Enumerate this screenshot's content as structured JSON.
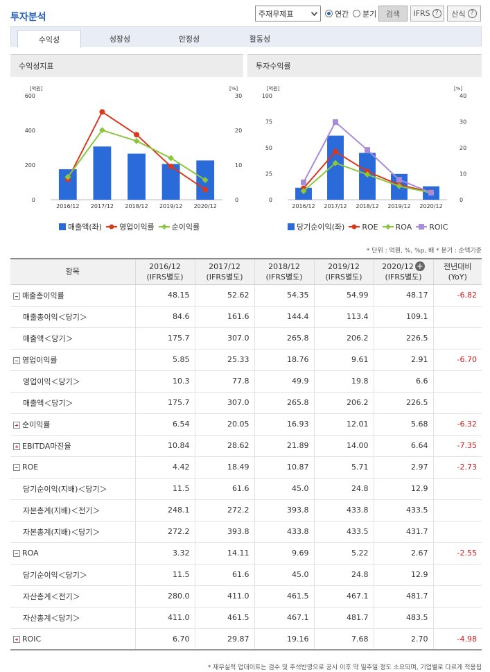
{
  "header": {
    "title": "투자분석",
    "select_value": "주재무제표",
    "radio_annual": "연간",
    "radio_quarter": "분기",
    "search_btn": "검색",
    "ifrs_btn": "IFRS",
    "formula_btn": "산식",
    "help_glyph": "?"
  },
  "tabs": [
    "수익성",
    "성장성",
    "안정성",
    "활동성"
  ],
  "panels": {
    "left_title": "수익성지표",
    "right_title": "투자수익률"
  },
  "colors": {
    "bar": "#2a6ad9",
    "red": "#d73a1f",
    "green": "#8cc63f",
    "purple": "#a98bd9",
    "yoy": "#d21d1d"
  },
  "chart_data": [
    {
      "type": "bar",
      "title": "수익성지표",
      "categories": [
        "2016/12",
        "2017/12",
        "2018/12",
        "2019/12",
        "2020/12"
      ],
      "left_axis_label": "[억원]",
      "right_axis_label": "[%]",
      "left_ticks": [
        "600",
        "400",
        "200",
        "0"
      ],
      "right_ticks": [
        "30",
        "20",
        "10",
        "0"
      ],
      "ylim_left": [
        0,
        600
      ],
      "ylim_right": [
        0,
        30
      ],
      "series": [
        {
          "name": "매출액(좌)",
          "kind": "bar",
          "axis": "left",
          "values": [
            175.7,
            307.0,
            265.8,
            206.2,
            226.5
          ]
        },
        {
          "name": "영업이익률",
          "kind": "line",
          "axis": "right",
          "marker": "circle",
          "values": [
            5.85,
            25.33,
            18.76,
            9.61,
            2.91
          ]
        },
        {
          "name": "순이익률",
          "kind": "line",
          "axis": "right",
          "marker": "diamond",
          "values": [
            6.54,
            20.05,
            16.93,
            12.01,
            5.68
          ]
        }
      ]
    },
    {
      "type": "bar",
      "title": "투자수익률",
      "categories": [
        "2016/12",
        "2017/12",
        "2018/12",
        "2019/12",
        "2020/12"
      ],
      "left_axis_label": "[억원]",
      "right_axis_label": "[%]",
      "left_ticks": [
        "100",
        "75",
        "50",
        "25",
        "0"
      ],
      "right_ticks": [
        "40",
        "30",
        "20",
        "10",
        "0"
      ],
      "ylim_left": [
        0,
        100
      ],
      "ylim_right": [
        0,
        40
      ],
      "series": [
        {
          "name": "당기순이익(좌)",
          "kind": "bar",
          "axis": "left",
          "values": [
            11.5,
            61.6,
            45.0,
            24.8,
            12.9
          ]
        },
        {
          "name": "ROE",
          "kind": "line",
          "axis": "right",
          "marker": "circle",
          "values": [
            4.42,
            18.49,
            10.87,
            5.71,
            2.97
          ]
        },
        {
          "name": "ROA",
          "kind": "line",
          "axis": "right",
          "marker": "diamond",
          "values": [
            3.32,
            14.11,
            9.69,
            5.22,
            2.67
          ]
        },
        {
          "name": "ROIC",
          "kind": "line",
          "axis": "right",
          "marker": "square",
          "values": [
            6.7,
            29.87,
            19.16,
            7.68,
            2.7
          ]
        }
      ]
    }
  ],
  "unit_note": "* 단위 : 억원, %, %p, 배   * 분기 : 순액기준",
  "table": {
    "headers": [
      {
        "main": "항목",
        "sub": ""
      },
      {
        "main": "2016/12",
        "sub": "(IFRS별도)"
      },
      {
        "main": "2017/12",
        "sub": "(IFRS별도)"
      },
      {
        "main": "2018/12",
        "sub": "(IFRS별도)"
      },
      {
        "main": "2019/12",
        "sub": "(IFRS별도)"
      },
      {
        "main": "2020/12",
        "sub": "(IFRS별도)"
      },
      {
        "main": "전년대비",
        "sub": "(YoY)"
      }
    ],
    "rows": [
      {
        "label": "매출총이익률",
        "toggle": "minus",
        "values": [
          "48.15",
          "52.62",
          "54.35",
          "54.99",
          "48.17"
        ],
        "yoy": "-6.82"
      },
      {
        "label": "매출총이익＜당기＞",
        "toggle": "",
        "values": [
          "84.6",
          "161.6",
          "144.4",
          "113.4",
          "109.1"
        ],
        "yoy": ""
      },
      {
        "label": "매출액＜당기＞",
        "toggle": "",
        "values": [
          "175.7",
          "307.0",
          "265.8",
          "206.2",
          "226.5"
        ],
        "yoy": ""
      },
      {
        "label": "영업이익률",
        "toggle": "minus",
        "values": [
          "5.85",
          "25.33",
          "18.76",
          "9.61",
          "2.91"
        ],
        "yoy": "-6.70"
      },
      {
        "label": "영업이익＜당기＞",
        "toggle": "",
        "values": [
          "10.3",
          "77.8",
          "49.9",
          "19.8",
          "6.6"
        ],
        "yoy": ""
      },
      {
        "label": "매출액＜당기＞",
        "toggle": "",
        "values": [
          "175.7",
          "307.0",
          "265.8",
          "206.2",
          "226.5"
        ],
        "yoy": ""
      },
      {
        "label": "순이익률",
        "toggle": "plus",
        "values": [
          "6.54",
          "20.05",
          "16.93",
          "12.01",
          "5.68"
        ],
        "yoy": "-6.32"
      },
      {
        "label": "EBITDA마진율",
        "toggle": "plus",
        "values": [
          "10.84",
          "28.62",
          "21.89",
          "14.00",
          "6.64"
        ],
        "yoy": "-7.35"
      },
      {
        "label": "ROE",
        "toggle": "minus",
        "values": [
          "4.42",
          "18.49",
          "10.87",
          "5.71",
          "2.97"
        ],
        "yoy": "-2.73"
      },
      {
        "label": "당기순이익(지배)＜당기＞",
        "toggle": "",
        "values": [
          "11.5",
          "61.6",
          "45.0",
          "24.8",
          "12.9"
        ],
        "yoy": ""
      },
      {
        "label": "자본총계(지배)＜전기＞",
        "toggle": "",
        "values": [
          "248.1",
          "272.2",
          "393.8",
          "433.8",
          "433.5"
        ],
        "yoy": ""
      },
      {
        "label": "자본총계(지배)＜당기＞",
        "toggle": "",
        "values": [
          "272.2",
          "393.8",
          "433.8",
          "433.5",
          "431.7"
        ],
        "yoy": ""
      },
      {
        "label": "ROA",
        "toggle": "minus",
        "values": [
          "3.32",
          "14.11",
          "9.69",
          "5.22",
          "2.67"
        ],
        "yoy": "-2.55"
      },
      {
        "label": "당기순이익＜당기＞",
        "toggle": "",
        "values": [
          "11.5",
          "61.6",
          "45.0",
          "24.8",
          "12.9"
        ],
        "yoy": ""
      },
      {
        "label": "자산총계＜전기＞",
        "toggle": "",
        "values": [
          "280.0",
          "411.0",
          "461.5",
          "467.1",
          "481.7"
        ],
        "yoy": ""
      },
      {
        "label": "자산총계＜당기＞",
        "toggle": "",
        "values": [
          "411.0",
          "461.5",
          "467.1",
          "481.7",
          "483.5"
        ],
        "yoy": ""
      },
      {
        "label": "ROIC",
        "toggle": "plus",
        "values": [
          "6.70",
          "29.87",
          "19.16",
          "7.68",
          "2.70"
        ],
        "yoy": "-4.98"
      }
    ]
  },
  "footnote": "* 재무실적 업데이트는 검수 및 주석반영으로 공시 이후 약 일주일 정도 소요되며, 기업별로 다르게 적용됩"
}
